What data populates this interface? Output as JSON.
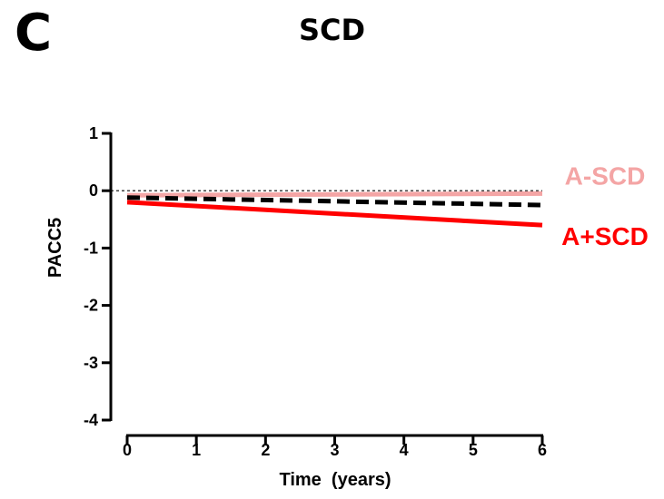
{
  "panel_label": "C",
  "chart_data": {
    "type": "line",
    "title": "SCD",
    "xlabel": "Time  (years)",
    "ylabel": "PACC5",
    "xlim": [
      0,
      6
    ],
    "ylim": [
      -4,
      1
    ],
    "x_ticks": [
      "0",
      "1",
      "2",
      "3",
      "4",
      "5",
      "6"
    ],
    "y_ticks": [
      "1",
      "0",
      "-1",
      "-2",
      "-3",
      "-4"
    ],
    "reference_line_y": 0,
    "grid": false,
    "series": [
      {
        "name": "A-SCD",
        "color": "#f4a5a5",
        "dashed": false,
        "x": [
          0,
          6
        ],
        "y": [
          -0.08,
          -0.05
        ]
      },
      {
        "name": "",
        "color": "#000000",
        "dashed": true,
        "x": [
          0,
          6
        ],
        "y": [
          -0.12,
          -0.25
        ]
      },
      {
        "name": "A+SCD",
        "color": "#ff0000",
        "dashed": false,
        "x": [
          0,
          6
        ],
        "y": [
          -0.2,
          -0.6
        ]
      }
    ]
  }
}
